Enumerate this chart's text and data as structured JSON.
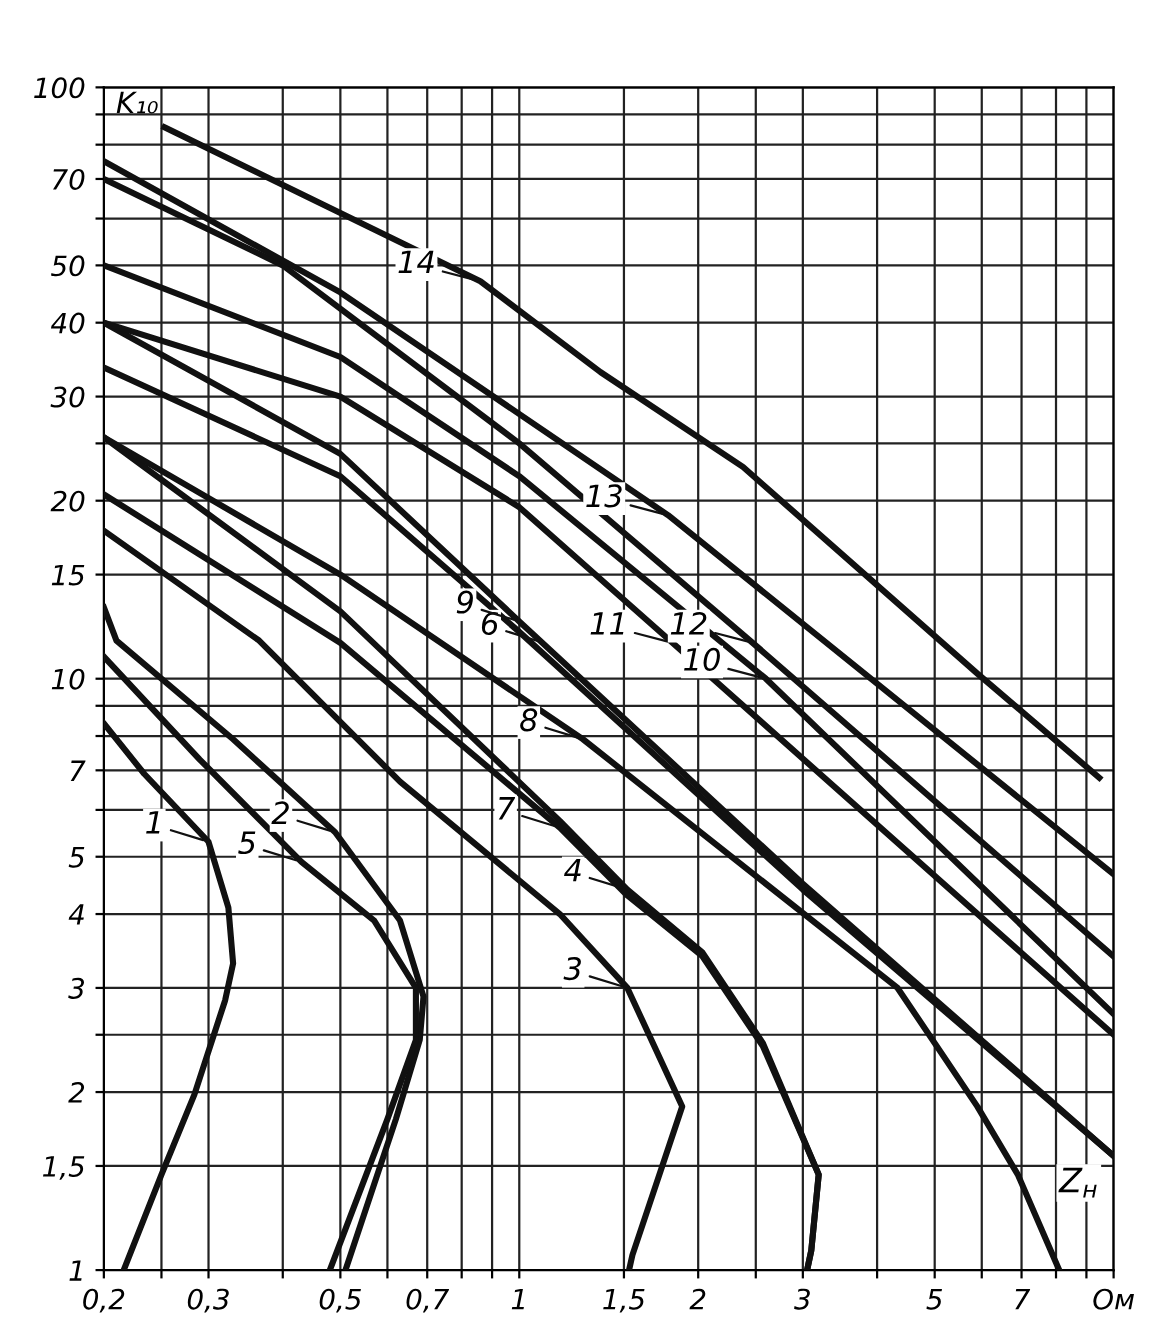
{
  "chart_data": {
    "type": "line",
    "xlabel": "Z$_{н}$",
    "ylabel": "K₁₀",
    "log": "xy",
    "grid": true,
    "marker": "none",
    "line_style": "solid",
    "xlim": [
      0.2,
      10
    ],
    "ylim": [
      1,
      100
    ],
    "xticks": [
      {
        "value": 0.2,
        "label": "0,2"
      },
      {
        "value": 0.25,
        "label": null
      },
      {
        "value": 0.3,
        "label": "0,3"
      },
      {
        "value": 0.4,
        "label": null
      },
      {
        "value": 0.5,
        "label": "0,5"
      },
      {
        "value": 0.6,
        "label": null
      },
      {
        "value": 0.7,
        "label": "0,7"
      },
      {
        "value": 0.8,
        "label": null
      },
      {
        "value": 0.9,
        "label": null
      },
      1,
      {
        "value": 1.5,
        "label": "1,5"
      },
      2,
      {
        "value": 2.5,
        "label": null
      },
      3,
      {
        "value": 4,
        "label": null
      },
      5,
      {
        "value": 6,
        "label": null
      },
      7,
      {
        "value": 8,
        "label": null
      },
      {
        "value": 9,
        "label": null
      },
      {
        "value": 10,
        "label": "Ом"
      }
    ],
    "yticks": [
      1,
      {
        "value": 1.5,
        "label": "1,5"
      },
      2,
      {
        "value": 2.5,
        "label": null
      },
      3,
      4,
      5,
      {
        "value": 6,
        "label": null
      },
      7,
      {
        "value": 8,
        "label": null
      },
      {
        "value": 9,
        "label": null
      },
      10,
      15,
      20,
      {
        "value": 25,
        "label": null
      },
      30,
      40,
      50,
      {
        "value": 60,
        "label": null
      },
      70,
      {
        "value": 80,
        "label": null
      },
      {
        "value": 90,
        "label": null
      },
      100
    ],
    "series": [
      {
        "color": "#111111",
        "x": [
          0.2,
          0.234,
          0.3,
          0.324,
          0.33,
          0.32,
          0.284,
          0.25,
          0.216
        ],
        "values": [
          8.4,
          6.9,
          5.3,
          4.1,
          3.3,
          2.86,
          1.98,
          1.45,
          1
        ]
      },
      {
        "color": "#111111",
        "x": [
          0.2,
          0.21,
          0.33,
          0.49,
          0.63,
          0.69,
          0.68,
          0.62,
          0.51
        ],
        "values": [
          13.2,
          11.6,
          7.9,
          5.5,
          3.9,
          2.9,
          2.45,
          1.8,
          1
        ]
      },
      {
        "color": "#111111",
        "x": [
          0.2,
          0.365,
          0.63,
          1.17,
          1.52,
          1.88,
          1.55,
          1.53
        ],
        "values": [
          17.8,
          11.6,
          6.7,
          4.0,
          3.0,
          1.89,
          1.06,
          1
        ]
      },
      {
        "color": "#111111",
        "x": [
          0.2,
          0.5,
          1.17,
          1.52,
          2.03,
          2.57,
          3.19,
          3.1,
          3.05
        ],
        "values": [
          25.6,
          13,
          5.75,
          4.4,
          3.45,
          2.42,
          1.45,
          1.08,
          1
        ]
      },
      {
        "color": "#111111",
        "x": [
          0.2,
          0.29,
          0.43,
          0.57,
          0.67,
          0.67,
          0.6,
          0.48
        ],
        "values": [
          10.9,
          7.3,
          4.9,
          3.9,
          3.0,
          2.45,
          1.8,
          1
        ]
      },
      {
        "color": "#111111",
        "x": [
          0.2,
          0.5,
          1,
          3,
          10
        ],
        "values": [
          33.6,
          22,
          12,
          4.4,
          1.56
        ]
      },
      {
        "color": "#111111",
        "x": [
          0.2,
          0.5,
          1.17,
          1.52,
          2.03,
          2.57,
          3.19,
          3.1,
          3.05
        ],
        "values": [
          20.5,
          11.5,
          5.6,
          4.3,
          3.4,
          2.39,
          1.45,
          1.08,
          1
        ]
      },
      {
        "color": "#111111",
        "x": [
          0.2,
          0.5,
          1.28,
          4.33,
          5.9,
          6.9,
          8.1
        ],
        "values": [
          25.6,
          15,
          7.9,
          3.0,
          1.89,
          1.45,
          1
        ]
      },
      {
        "color": "#111111",
        "x": [
          0.2,
          0.5,
          1,
          3,
          10
        ],
        "values": [
          40,
          24,
          12.5,
          4.5,
          1.56
        ]
      },
      {
        "color": "#111111",
        "x": [
          0.2,
          0.5,
          1,
          2.6,
          10
        ],
        "values": [
          50,
          35,
          22,
          10,
          2.71
        ]
      },
      {
        "color": "#111111",
        "x": [
          0.2,
          0.5,
          1,
          1.81,
          10
        ],
        "values": [
          40,
          30,
          19.5,
          11.5,
          2.5
        ]
      },
      {
        "color": "#111111",
        "x": [
          0.2,
          0.4,
          1,
          2.47,
          10
        ],
        "values": [
          70,
          50,
          25,
          11.5,
          3.39
        ]
      },
      {
        "color": "#111111",
        "x": [
          0.2,
          0.5,
          1.78,
          10
        ],
        "values": [
          75,
          45,
          18.9,
          4.67
        ]
      },
      {
        "color": "#111111",
        "x": [
          0.253,
          0.86,
          1.37,
          2.38,
          5.9,
          9.46
        ],
        "values": [
          85.6,
          47,
          33,
          22.8,
          10.2,
          6.8
        ]
      }
    ],
    "annotations": [
      {
        "text": "1",
        "x": 0.3,
        "y": 5.3
      },
      {
        "text": "2",
        "x": 0.49,
        "y": 5.5
      },
      {
        "text": "3",
        "x": 1.52,
        "y": 3.0
      },
      {
        "text": "4",
        "x": 1.52,
        "y": 4.4
      },
      {
        "text": "5",
        "x": 0.43,
        "y": 4.9
      },
      {
        "text": "6",
        "x": 1.1,
        "y": 11.5
      },
      {
        "text": "7",
        "x": 1.17,
        "y": 5.6
      },
      {
        "text": "8",
        "x": 1.28,
        "y": 7.9
      },
      {
        "text": "9",
        "x": 1.0,
        "y": 12.5
      },
      {
        "text": "10",
        "x": 2.6,
        "y": 10
      },
      {
        "text": "11",
        "x": 1.81,
        "y": 11.5
      },
      {
        "text": "12",
        "x": 2.47,
        "y": 11.5
      },
      {
        "text": "13",
        "x": 1.78,
        "y": 18.9
      },
      {
        "text": "14",
        "x": 0.86,
        "y": 47
      }
    ]
  }
}
